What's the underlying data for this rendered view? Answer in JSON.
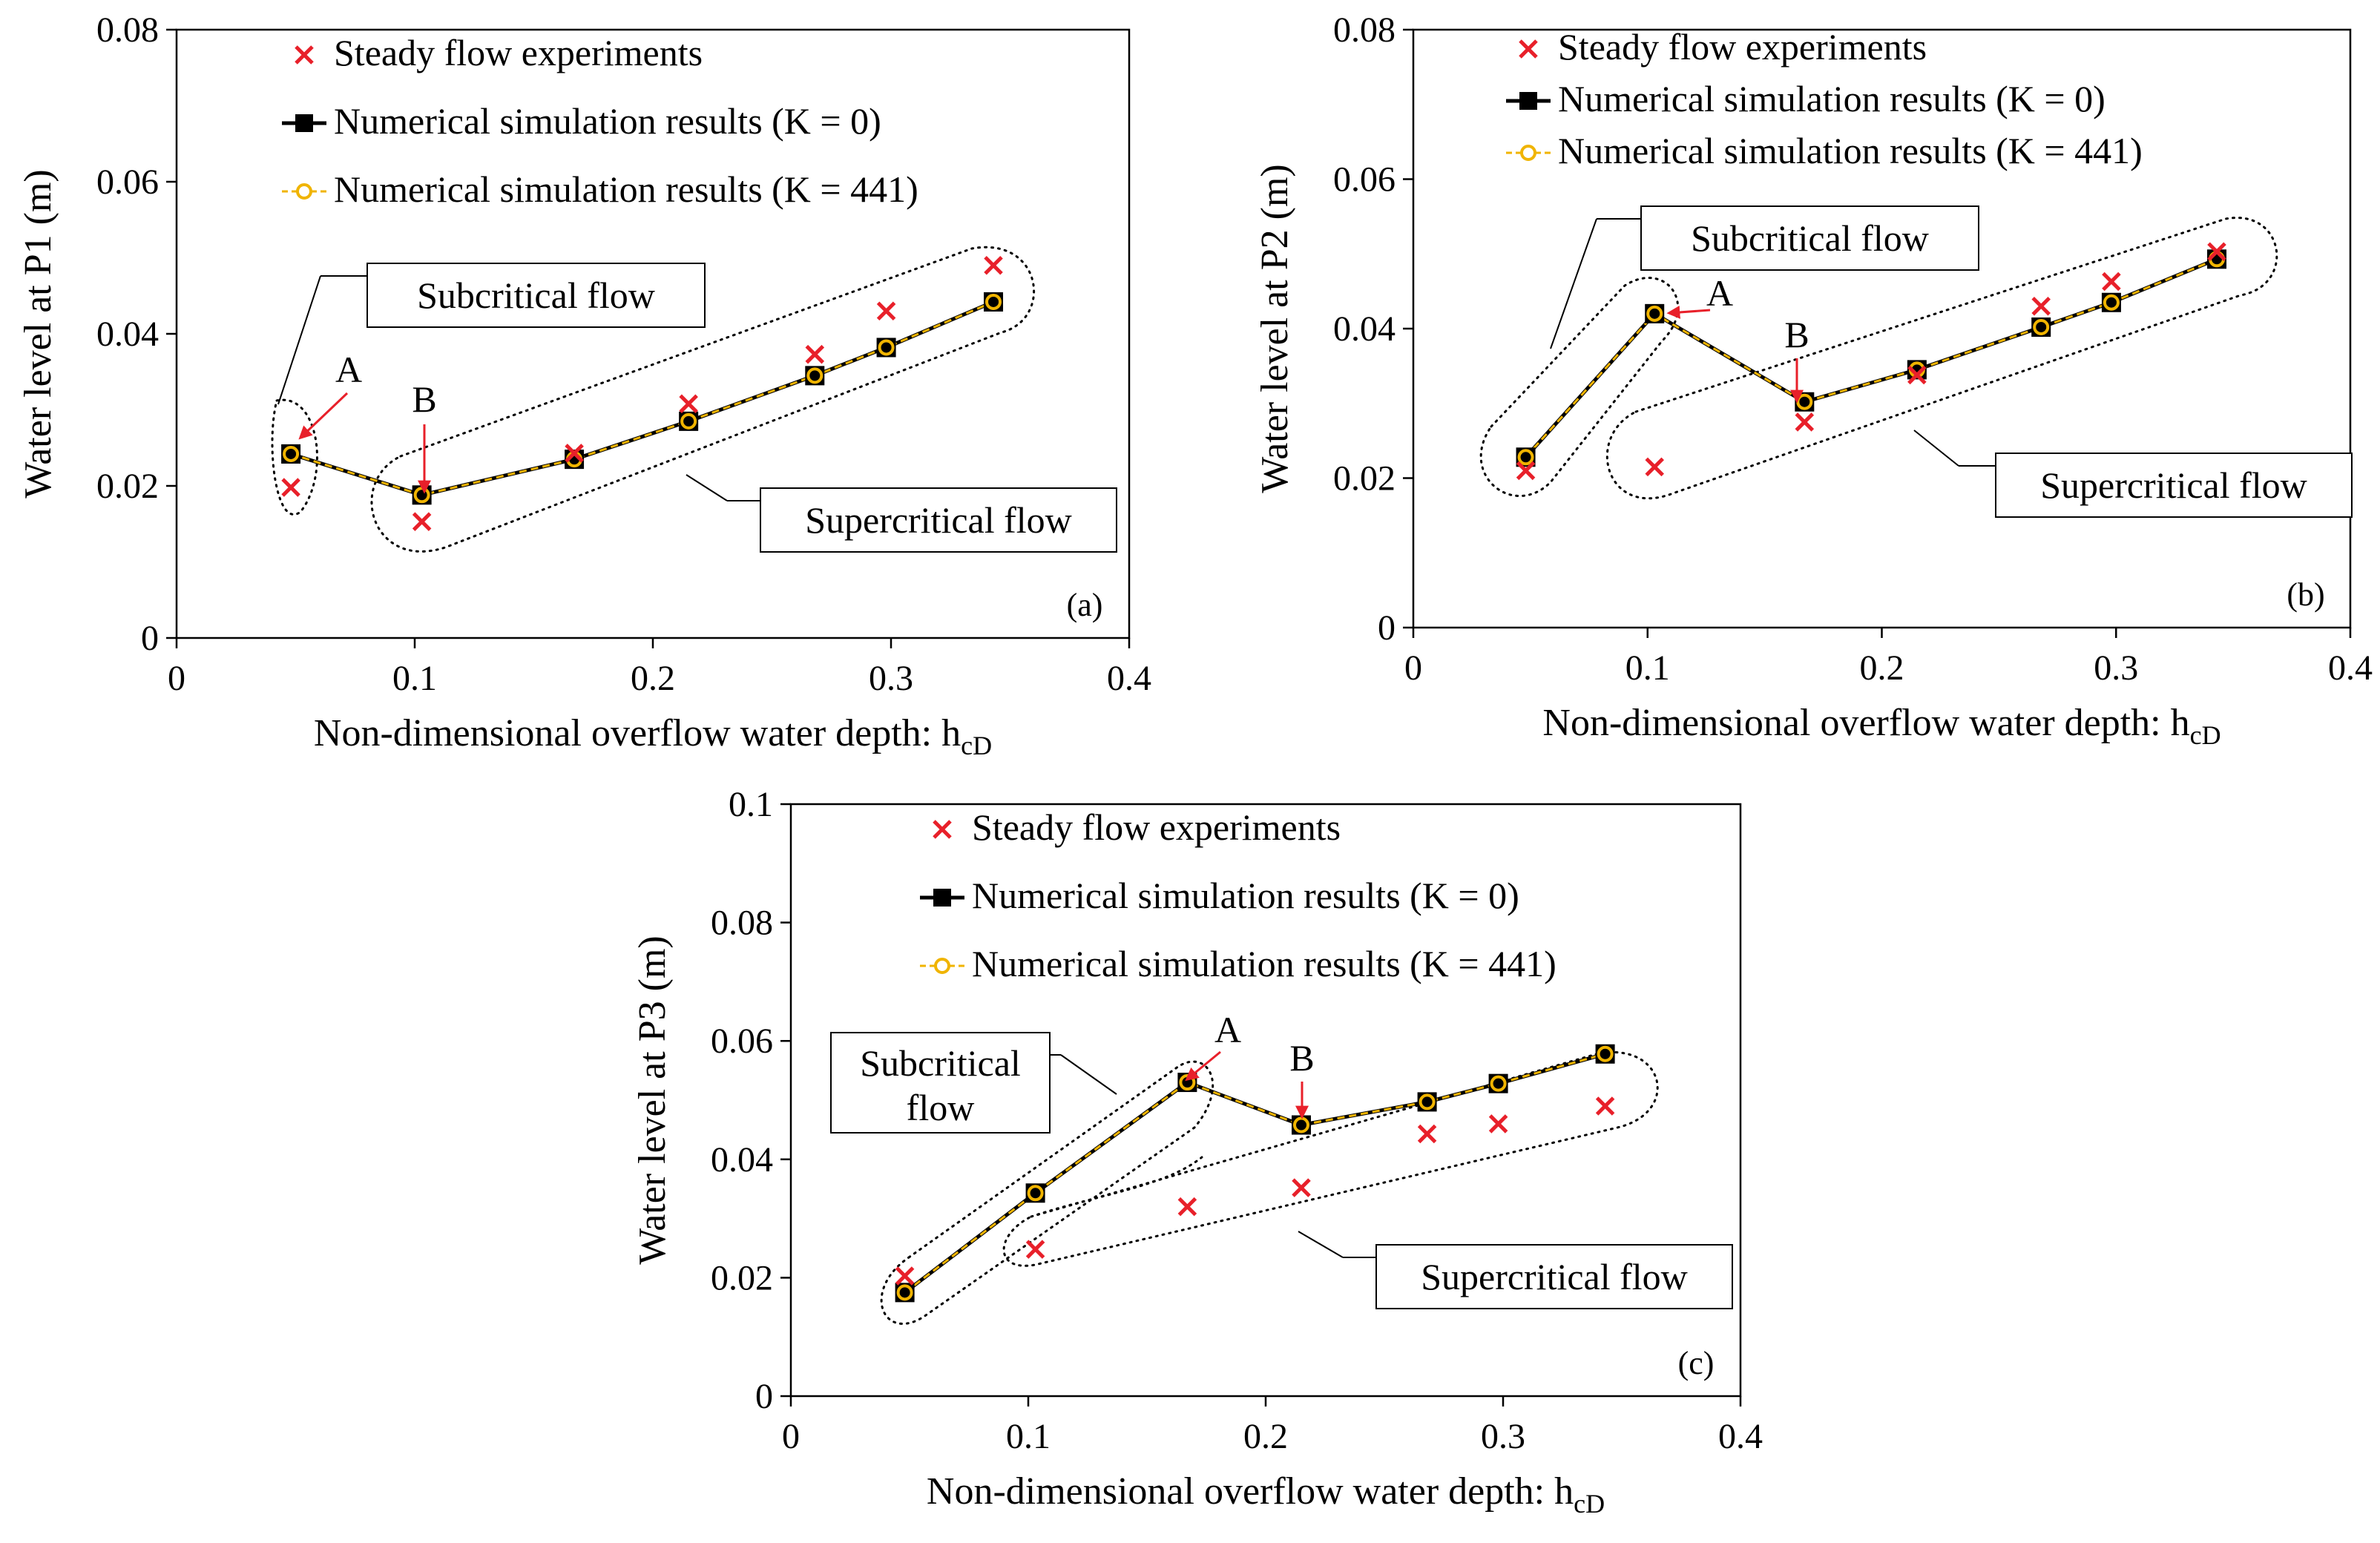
{
  "legend": {
    "experiments": "Steady flow experiments",
    "sim_k0": "Numerical simulation results (K = 0)",
    "sim_k441": "Numerical simulation results (K = 441)"
  },
  "colors": {
    "experiments": "#e8202a",
    "sim_k0": "#000000",
    "sim_k441": "#f0b400",
    "annotation_arrow": "#e8202a"
  },
  "chart_data": [
    {
      "type": "scatter",
      "panel_label": "(a)",
      "xlabel": "Non-dimensional overflow water depth: h",
      "xlabel_sub": "cD",
      "ylabel": "Water level at P1 (m)",
      "xlim": [
        0,
        0.4
      ],
      "ylim": [
        0,
        0.08
      ],
      "x_ticks": [
        "0",
        "0.1",
        "0.2",
        "0.3",
        "0.4"
      ],
      "y_ticks": [
        "0",
        "0.02",
        "0.04",
        "0.06",
        "0.08"
      ],
      "series": [
        {
          "name": "Steady flow experiments",
          "x": [
            0.048,
            0.103,
            0.167,
            0.215,
            0.268,
            0.298,
            0.343
          ],
          "y": [
            0.0198,
            0.0153,
            0.0243,
            0.0308,
            0.0373,
            0.043,
            0.049
          ]
        },
        {
          "name": "Numerical simulation results (K = 0)",
          "x": [
            0.048,
            0.103,
            0.167,
            0.215,
            0.268,
            0.298,
            0.343
          ],
          "y": [
            0.0242,
            0.0188,
            0.0235,
            0.0285,
            0.0345,
            0.0382,
            0.0442
          ]
        },
        {
          "name": "Numerical simulation results (K = 441)",
          "x": [
            0.048,
            0.103,
            0.167,
            0.215,
            0.268,
            0.298,
            0.343
          ],
          "y": [
            0.0242,
            0.0188,
            0.0235,
            0.0285,
            0.0345,
            0.0382,
            0.0442
          ]
        }
      ],
      "annotations": {
        "A": "A",
        "B": "B",
        "subcritical": "Subcritical flow",
        "supercritical": "Supercritical flow"
      }
    },
    {
      "type": "scatter",
      "panel_label": "(b)",
      "xlabel": "Non-dimensional overflow water depth: h",
      "xlabel_sub": "cD",
      "ylabel": "Water level at P2 (m)",
      "xlim": [
        0,
        0.4
      ],
      "ylim": [
        0,
        0.08
      ],
      "x_ticks": [
        "0",
        "0.1",
        "0.2",
        "0.3",
        "0.4"
      ],
      "y_ticks": [
        "0",
        "0.02",
        "0.04",
        "0.06",
        "0.08"
      ],
      "series": [
        {
          "name": "Steady flow experiments",
          "x": [
            0.048,
            0.103,
            0.167,
            0.215,
            0.268,
            0.298,
            0.343
          ],
          "y": [
            0.021,
            0.0215,
            0.0275,
            0.0338,
            0.043,
            0.0463,
            0.0503
          ]
        },
        {
          "name": "Numerical simulation results (K = 0)",
          "x": [
            0.048,
            0.103,
            0.167,
            0.215,
            0.268,
            0.298,
            0.343
          ],
          "y": [
            0.0228,
            0.042,
            0.0302,
            0.0345,
            0.0402,
            0.0435,
            0.0493
          ]
        },
        {
          "name": "Numerical simulation results (K = 441)",
          "x": [
            0.048,
            0.103,
            0.167,
            0.215,
            0.268,
            0.298,
            0.343
          ],
          "y": [
            0.0228,
            0.042,
            0.0302,
            0.0345,
            0.0402,
            0.0435,
            0.0493
          ]
        }
      ],
      "annotations": {
        "A": "A",
        "B": "B",
        "subcritical": "Subcritical flow",
        "supercritical": "Supercritical flow"
      }
    },
    {
      "type": "scatter",
      "panel_label": "(c)",
      "xlabel": "Non-dimensional overflow water depth: h",
      "xlabel_sub": "cD",
      "ylabel": "Water level at P3 (m)",
      "xlim": [
        0,
        0.4
      ],
      "ylim": [
        0,
        0.1
      ],
      "x_ticks": [
        "0",
        "0.1",
        "0.2",
        "0.3",
        "0.4"
      ],
      "y_ticks": [
        "0",
        "0.02",
        "0.04",
        "0.06",
        "0.08",
        "0.1"
      ],
      "series": [
        {
          "name": "Steady flow experiments",
          "x": [
            0.048,
            0.103,
            0.167,
            0.215,
            0.268,
            0.298,
            0.343
          ],
          "y": [
            0.0203,
            0.0248,
            0.032,
            0.0352,
            0.0443,
            0.046,
            0.049
          ]
        },
        {
          "name": "Numerical simulation results (K = 0)",
          "x": [
            0.048,
            0.103,
            0.167,
            0.215,
            0.268,
            0.298,
            0.343
          ],
          "y": [
            0.0175,
            0.0343,
            0.053,
            0.0458,
            0.0497,
            0.0528,
            0.0578
          ]
        },
        {
          "name": "Numerical simulation results (K = 441)",
          "x": [
            0.048,
            0.103,
            0.167,
            0.215,
            0.268,
            0.298,
            0.343
          ],
          "y": [
            0.0175,
            0.0343,
            0.053,
            0.0458,
            0.0497,
            0.0528,
            0.0578
          ]
        }
      ],
      "annotations": {
        "A": "A",
        "B": "B",
        "subcritical_line1": "Subcritical",
        "subcritical_line2": "flow",
        "supercritical": "Supercritical flow"
      }
    }
  ]
}
